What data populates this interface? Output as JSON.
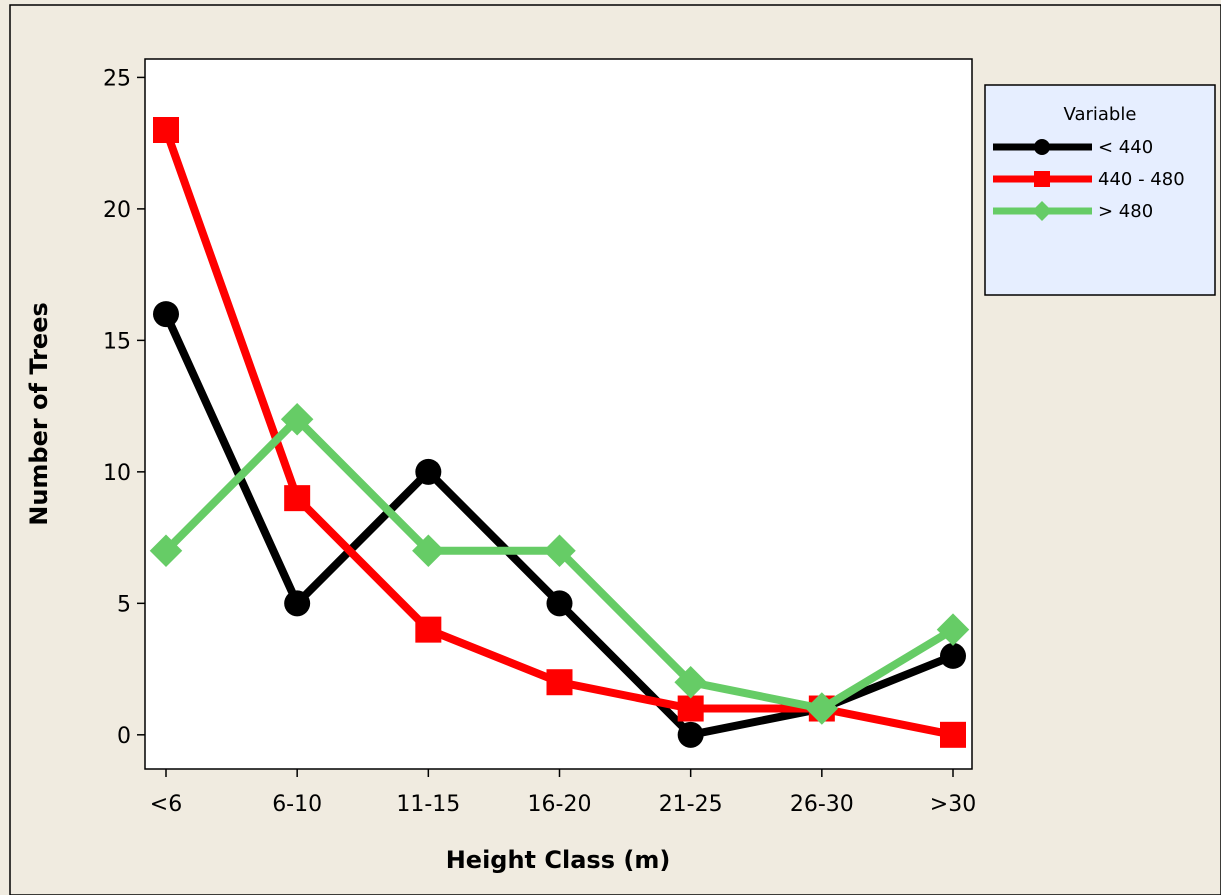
{
  "chart_data": {
    "type": "line",
    "title": "",
    "xlabel": "Height Class (m)",
    "ylabel": "Number of Trees",
    "categories": [
      "<6",
      "6-10",
      "11-15",
      "16-20",
      "21-25",
      "26-30",
      ">30"
    ],
    "ylim": [
      -1.3,
      25.7
    ],
    "yticks": [
      "0",
      "5",
      "10",
      "15",
      "20",
      "25"
    ],
    "grid": false,
    "legend_title": "Variable",
    "legend_position": "right-top",
    "series": [
      {
        "name": "< 440",
        "values": [
          16,
          5,
          10,
          5,
          0,
          1,
          3
        ],
        "color": "#000000",
        "marker": "circle"
      },
      {
        "name": "440 - 480",
        "values": [
          23,
          9,
          4,
          2,
          1,
          1,
          0
        ],
        "color": "#ff0000",
        "marker": "square"
      },
      {
        "name": "> 480",
        "values": [
          7,
          12,
          7,
          7,
          2,
          1,
          4
        ],
        "color": "#66cc66",
        "marker": "diamond"
      }
    ]
  },
  "colors": {
    "background": "#f0ebe0",
    "plot_area": "#ffffff",
    "legend_box": "#e6eeff"
  }
}
